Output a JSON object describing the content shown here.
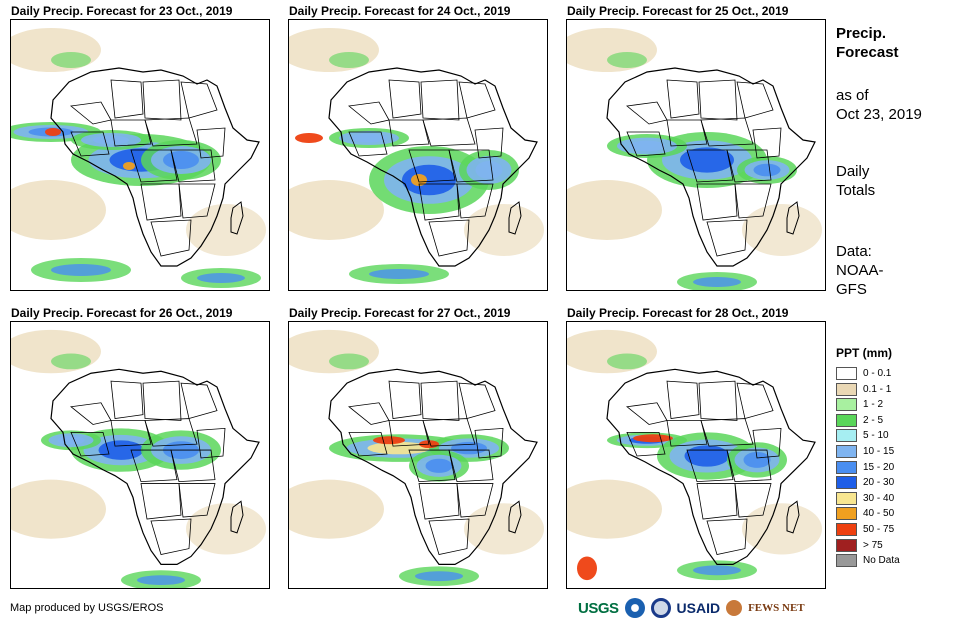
{
  "panels": [
    {
      "title": "Daily Precip. Forecast for 23 Oct., 2019"
    },
    {
      "title": "Daily Precip. Forecast for 24 Oct., 2019"
    },
    {
      "title": "Daily Precip. Forecast for 25 Oct., 2019"
    },
    {
      "title": "Daily Precip. Forecast for 26 Oct., 2019"
    },
    {
      "title": "Daily Precip. Forecast for 27 Oct., 2019"
    },
    {
      "title": "Daily Precip. Forecast for 28 Oct., 2019"
    }
  ],
  "side": {
    "heading_line1": "Precip.",
    "heading_line2": "Forecast",
    "asof_line1": "as of",
    "asof_line2": "Oct 23, 2019",
    "totals_line1": "Daily",
    "totals_line2": "Totals",
    "data_line1": "Data:",
    "data_line2": "NOAA-",
    "data_line3": "GFS"
  },
  "legend": {
    "title": "PPT (mm)",
    "items": [
      {
        "label": "0 - 0.1",
        "color": "#ffffff"
      },
      {
        "label": "0.1 - 1",
        "color": "#ead8b5"
      },
      {
        "label": "1 - 2",
        "color": "#a8f0a0"
      },
      {
        "label": "2 - 5",
        "color": "#5ad65a"
      },
      {
        "label": "5 - 10",
        "color": "#a6eef2"
      },
      {
        "label": "10 - 15",
        "color": "#7fb4f0"
      },
      {
        "label": "15 - 20",
        "color": "#4a8ef0"
      },
      {
        "label": "20 - 30",
        "color": "#1e5ee8"
      },
      {
        "label": "30 - 40",
        "color": "#f8e690"
      },
      {
        "label": "40 - 50",
        "color": "#f0a020"
      },
      {
        "label": "50 - 75",
        "color": "#ee4010"
      },
      {
        "label": "> 75",
        "color": "#a02020"
      },
      {
        "label": "No Data",
        "color": "#999999"
      }
    ]
  },
  "credit": "Map produced by USGS/EROS",
  "logos": {
    "usgs": "USGS",
    "usaid": "USAID",
    "fews": "FEWS NET"
  }
}
